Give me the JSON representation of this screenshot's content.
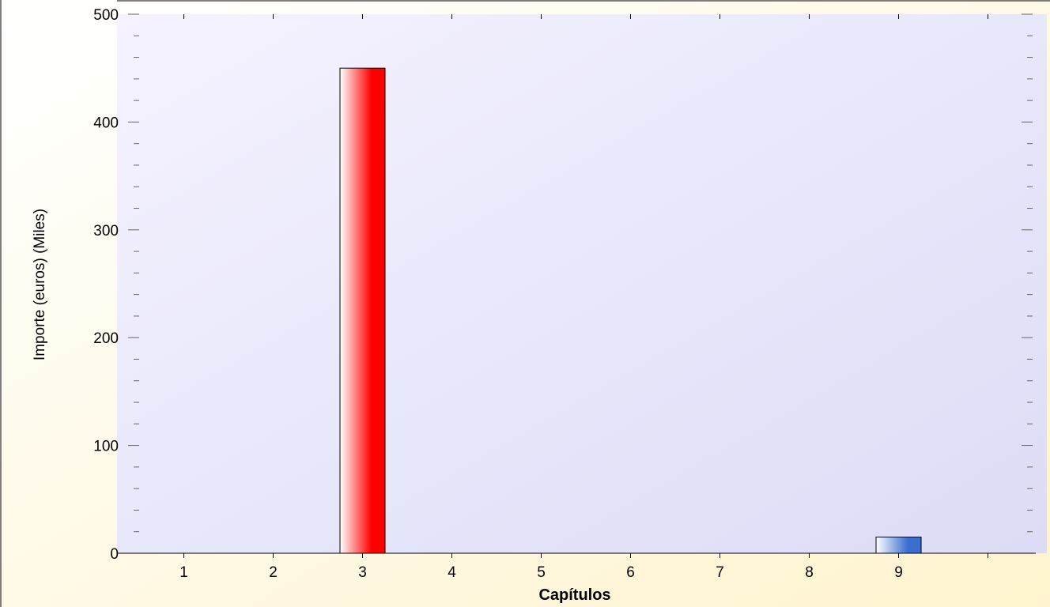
{
  "chart_data": {
    "type": "bar",
    "categories": [
      "1",
      "2",
      "3",
      "4",
      "5",
      "6",
      "7",
      "8",
      "9",
      ""
    ],
    "values": [
      0,
      0,
      450,
      0,
      0,
      0,
      0,
      0,
      15,
      0
    ],
    "bar_colors": [
      "#ff0000",
      "#ff0000",
      "#ff0000",
      "#ff0000",
      "#ff0000",
      "#ff0000",
      "#ff0000",
      "#ff0000",
      "#3a6fd0",
      "#ff0000"
    ],
    "xlabel": "Capítulos",
    "ylabel": "Importe (euros) (Miles)",
    "ylim": [
      0,
      500
    ],
    "yticks": [
      0,
      100,
      200,
      300,
      400,
      500
    ],
    "grid": false,
    "legend": "none"
  },
  "colors": {
    "plot_bg_start": "#f6f3ff",
    "plot_bg_end": "#dcdcf6",
    "outer_bg_start": "#ffffff",
    "outer_bg_end": "#fff4cf"
  }
}
